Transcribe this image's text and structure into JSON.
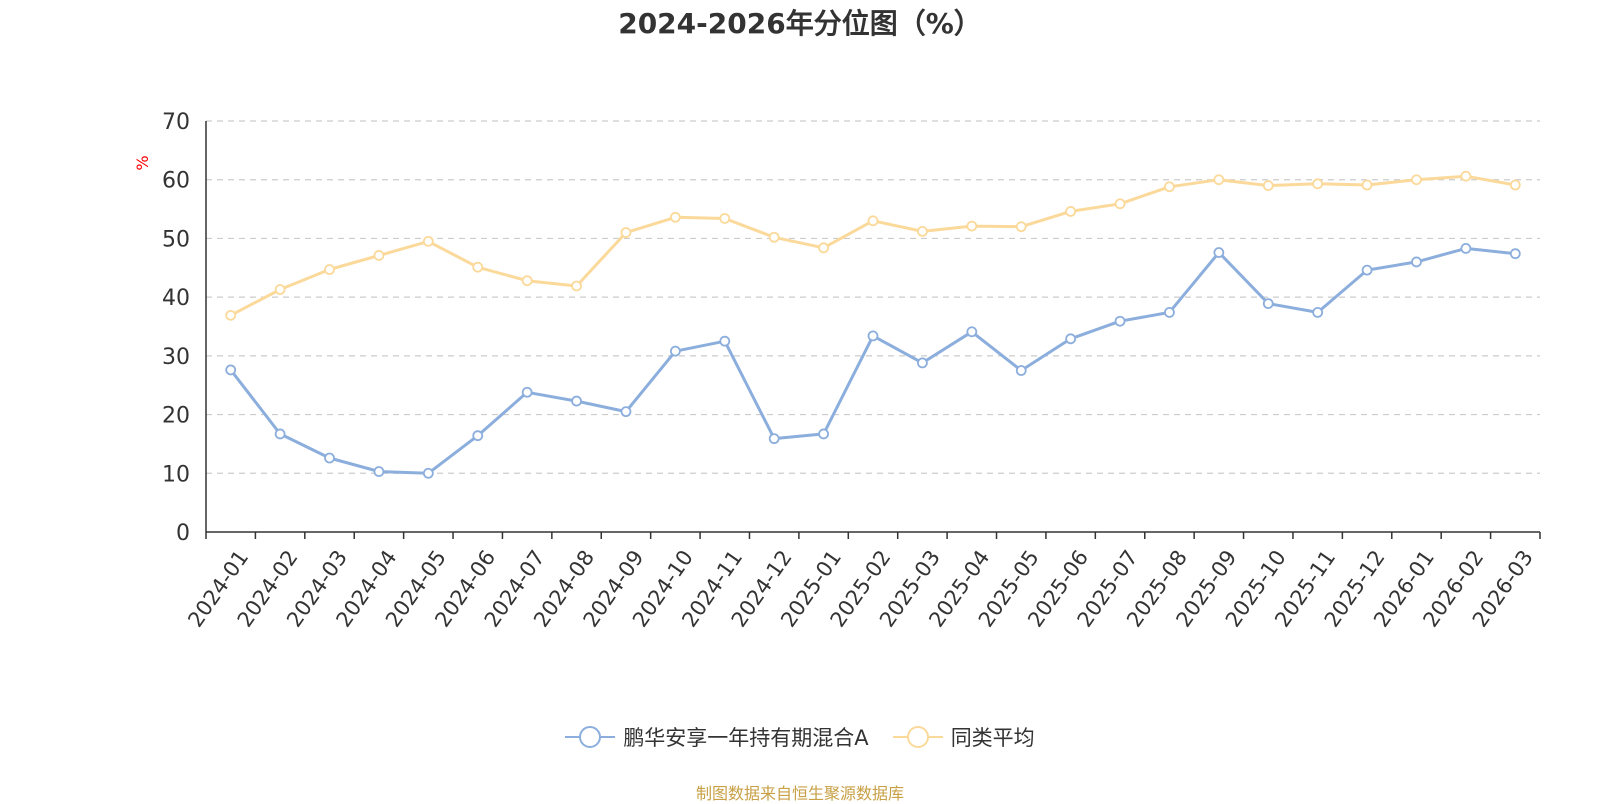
{
  "colors": {
    "series_a": "#8caedd",
    "series_b": "#fbd99a",
    "axis": "#333333",
    "grid": "#cccccc",
    "unit": "#ff0000"
  },
  "source_note": "制图数据来自恒生聚源数据库",
  "chart_data": {
    "type": "line",
    "title": "2024-2026年分位图（%）",
    "ylabel": "%",
    "ylim": [
      0,
      70
    ],
    "yticks": [
      0,
      10,
      20,
      30,
      40,
      50,
      60,
      70
    ],
    "grid": true,
    "legend_position": "bottom",
    "categories": [
      "2024-01",
      "2024-02",
      "2024-03",
      "2024-04",
      "2024-05",
      "2024-06",
      "2024-07",
      "2024-08",
      "2024-09",
      "2024-10",
      "2024-11",
      "2024-12",
      "2025-01",
      "2025-02",
      "2025-03",
      "2025-04",
      "2025-05",
      "2025-06",
      "2025-07",
      "2025-08",
      "2025-09",
      "2025-10",
      "2025-11",
      "2025-12",
      "2026-01",
      "2026-02",
      "2026-03"
    ],
    "series": [
      {
        "name": "鹏华安享一年持有期混合A",
        "color": "#8caedd",
        "values": [
          27.6,
          16.7,
          12.6,
          10.3,
          10.0,
          16.4,
          23.8,
          22.3,
          20.5,
          30.8,
          32.5,
          15.9,
          16.7,
          33.4,
          28.8,
          34.1,
          27.5,
          32.9,
          35.9,
          37.4,
          47.6,
          38.9,
          37.4,
          44.6,
          46.0,
          48.3,
          47.4
        ]
      },
      {
        "name": "同类平均",
        "color": "#fbd99a",
        "values": [
          36.9,
          41.3,
          44.7,
          47.1,
          49.5,
          45.1,
          42.8,
          41.9,
          51.0,
          53.6,
          53.4,
          50.2,
          48.4,
          53.0,
          51.2,
          52.1,
          52.0,
          54.6,
          55.9,
          58.8,
          60.0,
          59.0,
          59.3,
          59.1,
          60.0,
          60.6,
          59.1
        ]
      }
    ]
  }
}
